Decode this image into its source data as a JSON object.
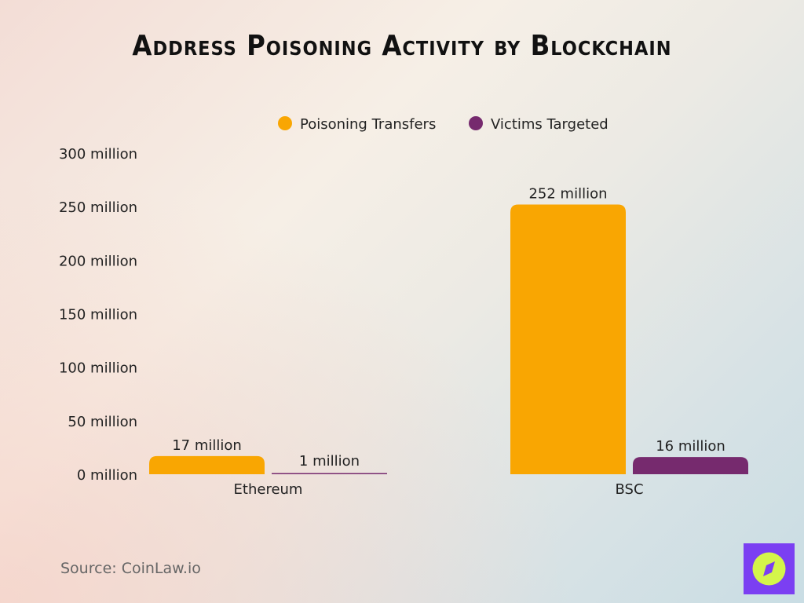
{
  "chart_data": {
    "type": "bar",
    "title": "Address Poisoning Activity by Blockchain",
    "categories": [
      "Ethereum",
      "BSC"
    ],
    "series": [
      {
        "name": "Poisoning Transfers",
        "values": [
          17,
          252
        ],
        "labels": [
          "17 million",
          "252 million"
        ],
        "color": "#f9a602"
      },
      {
        "name": "Victims Targeted",
        "values": [
          1,
          16
        ],
        "labels": [
          "1 million",
          "16 million"
        ],
        "color": "#762a6e"
      }
    ],
    "unit": "million",
    "ylim": [
      0,
      300
    ],
    "yticks": [
      0,
      50,
      100,
      150,
      200,
      250,
      300
    ],
    "ytick_labels": [
      "0 million",
      "50 million",
      "100 million",
      "150 million",
      "200 million",
      "250 million",
      "300 million"
    ],
    "grid": false,
    "legend": "top"
  },
  "source": "Source: CoinLaw.io",
  "logo": {
    "icon": "compass-icon",
    "bg": "#7b3ff2",
    "fg": "#d4f54a"
  }
}
